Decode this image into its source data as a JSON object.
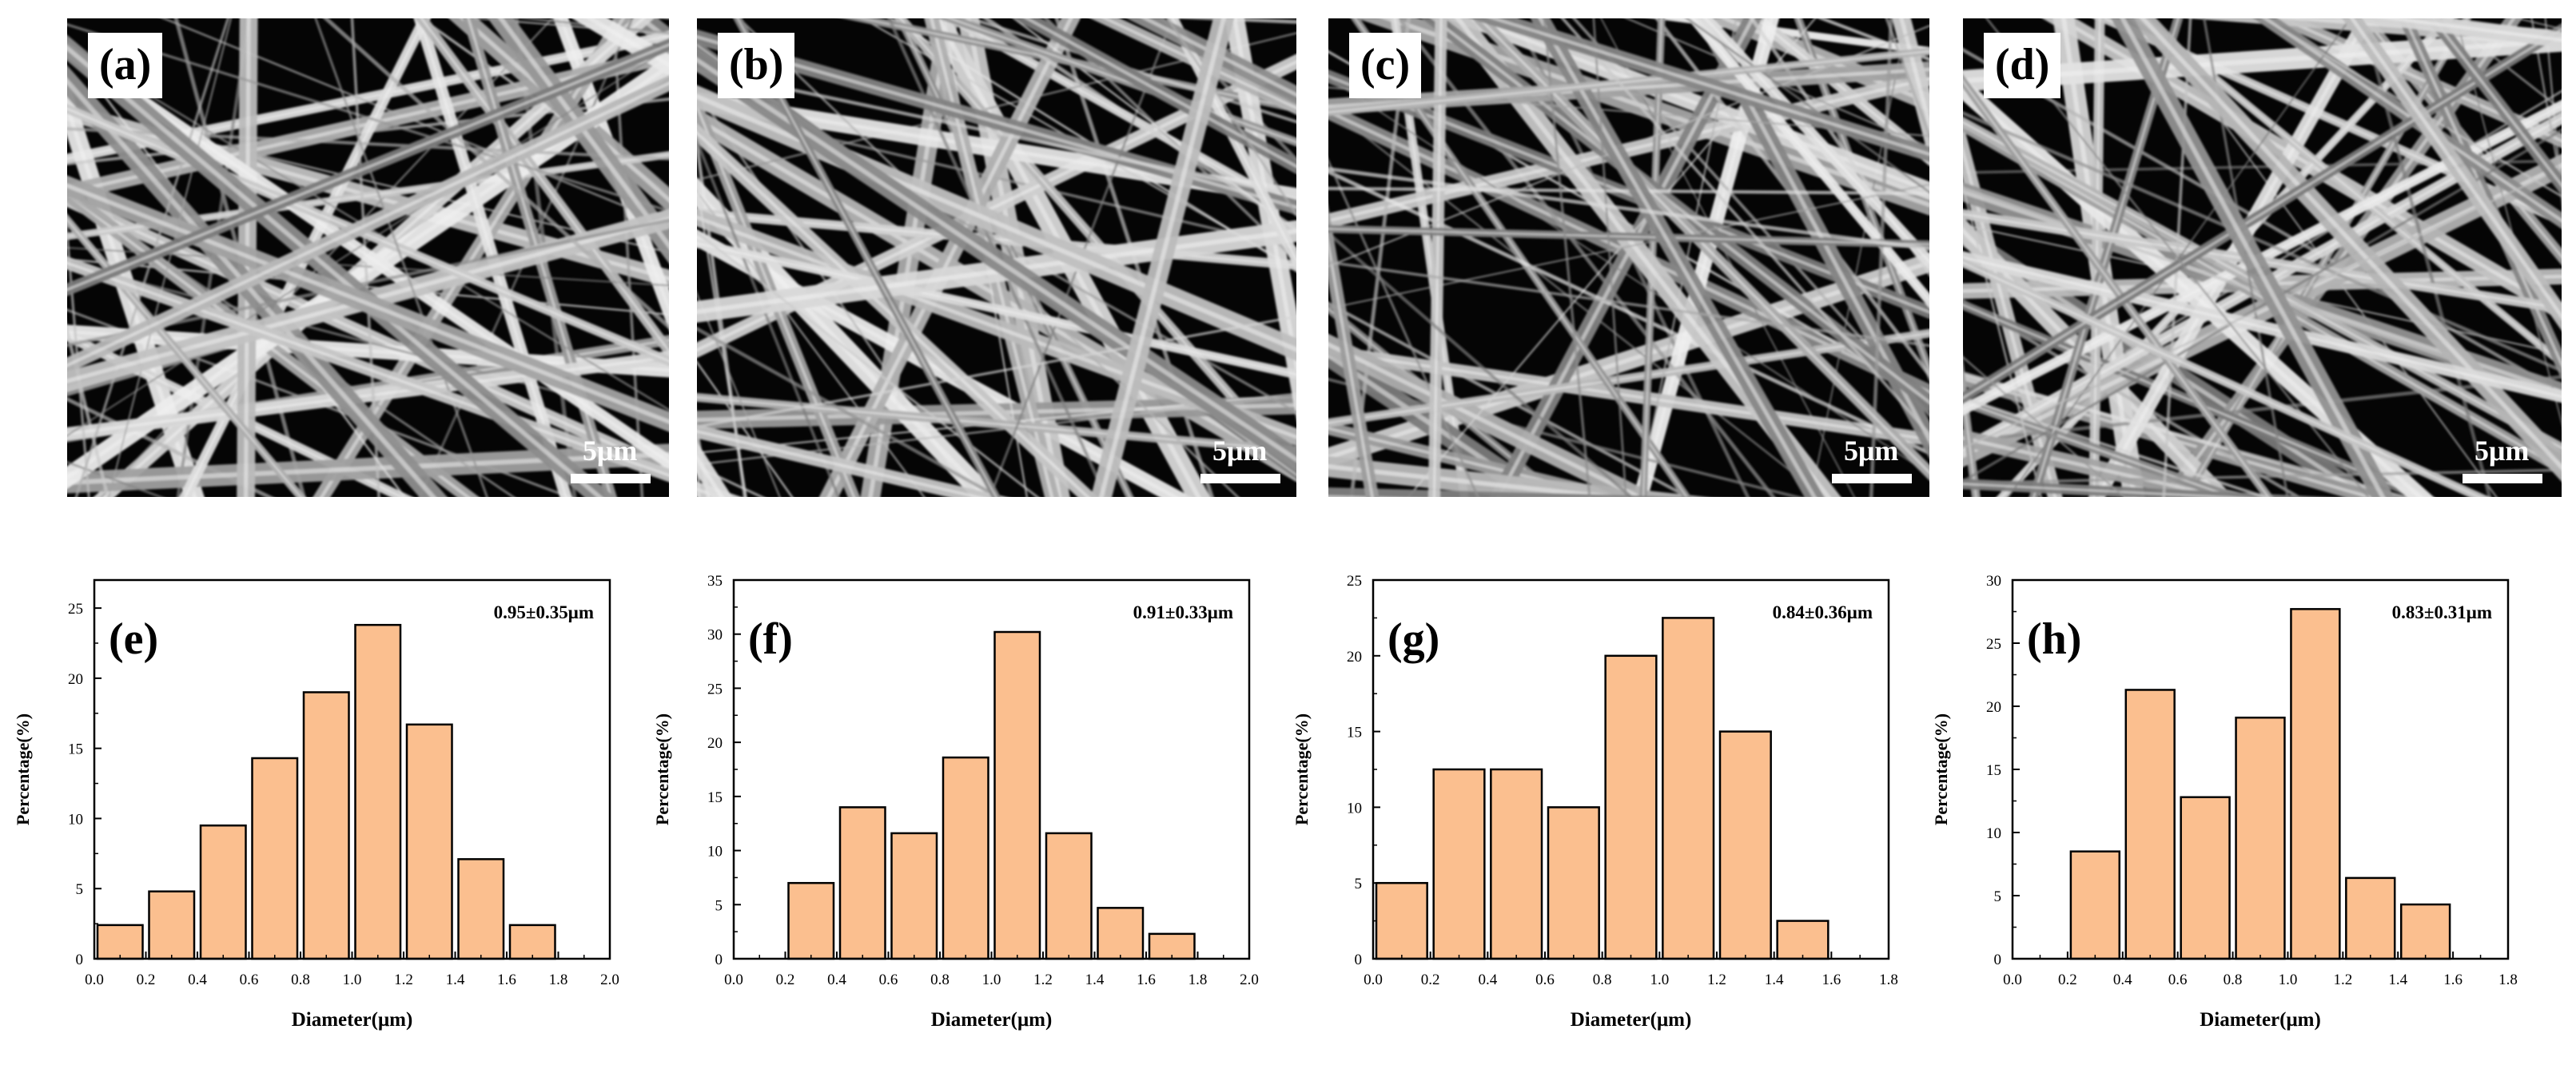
{
  "sem_panels": [
    {
      "label": "(a)",
      "scale": "5μm"
    },
    {
      "label": "(b)",
      "scale": "5μm"
    },
    {
      "label": "(c)",
      "scale": "5μm"
    },
    {
      "label": "(d)",
      "scale": "5μm"
    }
  ],
  "chart_data": [
    {
      "type": "bar",
      "label": "(e)",
      "annotation": "0.95±0.35μm",
      "xlabel": "Diameter(μm)",
      "ylabel": "Percentage(%)",
      "xlim": [
        0,
        2.0
      ],
      "ylim": [
        0,
        27
      ],
      "xticks": [
        "0.0",
        "0.2",
        "0.4",
        "0.6",
        "0.8",
        "1.0",
        "1.2",
        "1.4",
        "1.6",
        "1.8",
        "2.0"
      ],
      "yticks": [
        "0",
        "5",
        "10",
        "15",
        "20",
        "25"
      ],
      "bin_width": 0.2,
      "bin_centers": [
        0.1,
        0.3,
        0.5,
        0.7,
        0.9,
        1.1,
        1.3,
        1.5,
        1.7
      ],
      "values": [
        2.4,
        4.8,
        9.5,
        14.3,
        19.0,
        23.8,
        16.7,
        7.1,
        2.4
      ]
    },
    {
      "type": "bar",
      "label": "(f)",
      "annotation": "0.91±0.33μm",
      "xlabel": "Diameter(μm)",
      "ylabel": "Percentage(%)",
      "xlim": [
        0,
        2.0
      ],
      "ylim": [
        0,
        35
      ],
      "xticks": [
        "0.0",
        "0.2",
        "0.4",
        "0.6",
        "0.8",
        "1.0",
        "1.2",
        "1.4",
        "1.6",
        "1.8",
        "2.0"
      ],
      "yticks": [
        "0",
        "5",
        "10",
        "15",
        "20",
        "25",
        "30",
        "35"
      ],
      "bin_width": 0.2,
      "bin_centers": [
        0.3,
        0.5,
        0.7,
        0.9,
        1.1,
        1.3,
        1.5,
        1.7
      ],
      "values": [
        7.0,
        14.0,
        11.6,
        18.6,
        30.2,
        11.6,
        4.7,
        2.3
      ]
    },
    {
      "type": "bar",
      "label": "(g)",
      "annotation": "0.84±0.36μm",
      "xlabel": "Diameter(μm)",
      "ylabel": "Percentage(%)",
      "xlim": [
        0,
        1.8
      ],
      "ylim": [
        0,
        25
      ],
      "xticks": [
        "0.0",
        "0.2",
        "0.4",
        "0.6",
        "0.8",
        "1.0",
        "1.2",
        "1.4",
        "1.6",
        "1.8"
      ],
      "yticks": [
        "0",
        "5",
        "10",
        "15",
        "20",
        "25"
      ],
      "bin_width": 0.2,
      "bin_centers": [
        0.1,
        0.3,
        0.5,
        0.7,
        0.9,
        1.1,
        1.3,
        1.5
      ],
      "values": [
        5.0,
        12.5,
        12.5,
        10.0,
        20.0,
        22.5,
        15.0,
        2.5
      ]
    },
    {
      "type": "bar",
      "label": "(h)",
      "annotation": "0.83±0.31μm",
      "xlabel": "Diameter(μm)",
      "ylabel": "Percentage(%)",
      "xlim": [
        0,
        1.8
      ],
      "ylim": [
        0,
        30
      ],
      "xticks": [
        "0.0",
        "0.2",
        "0.4",
        "0.6",
        "0.8",
        "1.0",
        "1.2",
        "1.4",
        "1.6",
        "1.8"
      ],
      "yticks": [
        "0",
        "5",
        "10",
        "15",
        "20",
        "25",
        "30"
      ],
      "bin_width": 0.2,
      "bin_centers": [
        0.3,
        0.5,
        0.7,
        0.9,
        1.1,
        1.3,
        1.5
      ],
      "values": [
        8.5,
        21.3,
        12.8,
        19.1,
        27.7,
        6.4,
        4.3
      ]
    }
  ],
  "colors": {
    "bar_fill": "#fbbf8f",
    "bar_stroke": "#000000",
    "fiber": "#d8d8d8",
    "sem_bg": "#050505"
  }
}
